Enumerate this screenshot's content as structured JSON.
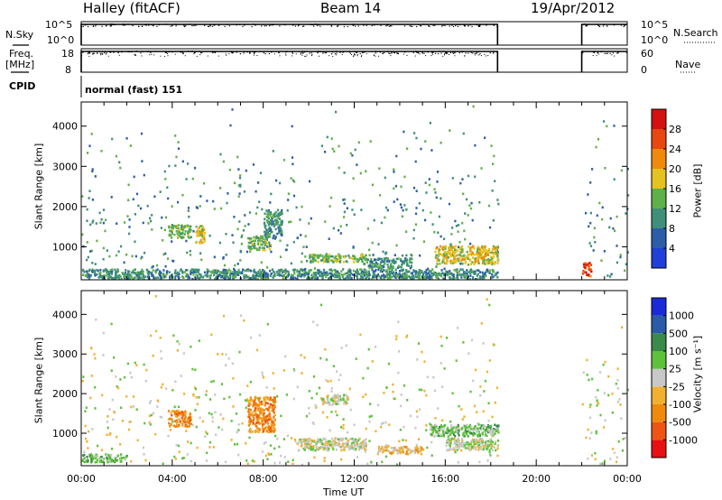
{
  "header": {
    "station": "Halley (fitACF)",
    "beam": "Beam 14",
    "date": "19/Apr/2012"
  },
  "top_panels": {
    "nsky_label": "N.Sky",
    "nsearch_label": "N.Search",
    "freq_label_line1": "Freq.",
    "freq_label_line2": "[MHz]",
    "nave_label": "Nave",
    "cpid_label": "CPID",
    "cpid_value": "normal (fast) 151",
    "nsky_ticks": [
      "10^5",
      "10^0"
    ],
    "nsearch_ticks": [
      "10^5",
      "10^0"
    ],
    "freq_ticks": [
      "18",
      "8"
    ],
    "nave_ticks": [
      "60",
      "0"
    ]
  },
  "colors": {
    "power_scale": [
      "#1f3fd8",
      "#2c5ea8",
      "#3f8f7a",
      "#5fb048",
      "#e6c21e",
      "#f08a0a",
      "#e84810",
      "#d41010"
    ],
    "velocity_scale": [
      "#e81010",
      "#ee5512",
      "#f08a0a",
      "#f2b030",
      "#c8c8c8",
      "#5cc23a",
      "#3a8a4a",
      "#2a5aa8",
      "#1a2ad8"
    ]
  },
  "chart_data": [
    {
      "type": "heatmap",
      "title": "Power",
      "ylabel": "Slant Range [km]",
      "xlabel": "Time UT",
      "x_ticks": [
        "00:00",
        "04:00",
        "08:00",
        "12:00",
        "16:00",
        "20:00",
        "00:00"
      ],
      "y_ticks": [
        "1000",
        "2000",
        "3000",
        "4000"
      ],
      "ylim": [
        180,
        4600
      ],
      "colorbar_label": "Power [dB]",
      "colorbar_ticks": [
        "4",
        "8",
        "12",
        "16",
        "20",
        "24",
        "28"
      ],
      "data_gap_hours": [
        18.3,
        22.0
      ],
      "regions": [
        {
          "t0": 0.0,
          "t1": 18.3,
          "r0": 180,
          "r1": 420,
          "level": 2
        },
        {
          "t0": 3.8,
          "t1": 4.8,
          "r0": 1200,
          "r1": 1550,
          "level": 3
        },
        {
          "t0": 5.0,
          "t1": 5.4,
          "r0": 1050,
          "r1": 1500,
          "level": 4
        },
        {
          "t0": 7.3,
          "t1": 8.3,
          "r0": 900,
          "r1": 1250,
          "level": 3
        },
        {
          "t0": 8.0,
          "t1": 8.8,
          "r0": 1200,
          "r1": 1900,
          "level": 2
        },
        {
          "t0": 10.0,
          "t1": 12.5,
          "r0": 600,
          "r1": 800,
          "level": 3
        },
        {
          "t0": 12.5,
          "t1": 14.5,
          "r0": 450,
          "r1": 700,
          "level": 2
        },
        {
          "t0": 15.5,
          "t1": 18.3,
          "r0": 550,
          "r1": 1000,
          "level": 4
        },
        {
          "t0": 22.0,
          "t1": 22.4,
          "r0": 250,
          "r1": 600,
          "level": 6
        }
      ]
    },
    {
      "type": "heatmap",
      "title": "Velocity",
      "ylabel": "Slant Range [km]",
      "xlabel": "Time UT",
      "x_ticks": [
        "00:00",
        "04:00",
        "08:00",
        "12:00",
        "16:00",
        "20:00",
        "00:00"
      ],
      "y_ticks": [
        "1000",
        "2000",
        "3000",
        "4000"
      ],
      "ylim": [
        180,
        4600
      ],
      "colorbar_label": "Velocity [m s⁻¹]",
      "colorbar_ticks": [
        "-1000",
        "-500",
        "-100",
        "-25",
        "25",
        "100",
        "500",
        "1000"
      ],
      "data_gap_hours": [
        18.3,
        22.0
      ],
      "regions": [
        {
          "t0": 0.0,
          "t1": 2.0,
          "r0": 250,
          "r1": 450,
          "level": 5
        },
        {
          "t0": 3.8,
          "t1": 4.8,
          "r0": 1150,
          "r1": 1550,
          "level": 2
        },
        {
          "t0": 7.3,
          "t1": 8.5,
          "r0": 1000,
          "r1": 1900,
          "level": 2
        },
        {
          "t0": 9.5,
          "t1": 12.5,
          "r0": 550,
          "r1": 850,
          "level": 4
        },
        {
          "t0": 10.5,
          "t1": 11.7,
          "r0": 1700,
          "r1": 1950,
          "level": 4
        },
        {
          "t0": 13.0,
          "t1": 15.0,
          "r0": 450,
          "r1": 650,
          "level": 3
        },
        {
          "t0": 15.3,
          "t1": 18.3,
          "r0": 900,
          "r1": 1200,
          "level": 5
        },
        {
          "t0": 16.0,
          "t1": 18.3,
          "r0": 550,
          "r1": 850,
          "level": 4
        }
      ]
    }
  ],
  "x_axis_title": "Time UT"
}
